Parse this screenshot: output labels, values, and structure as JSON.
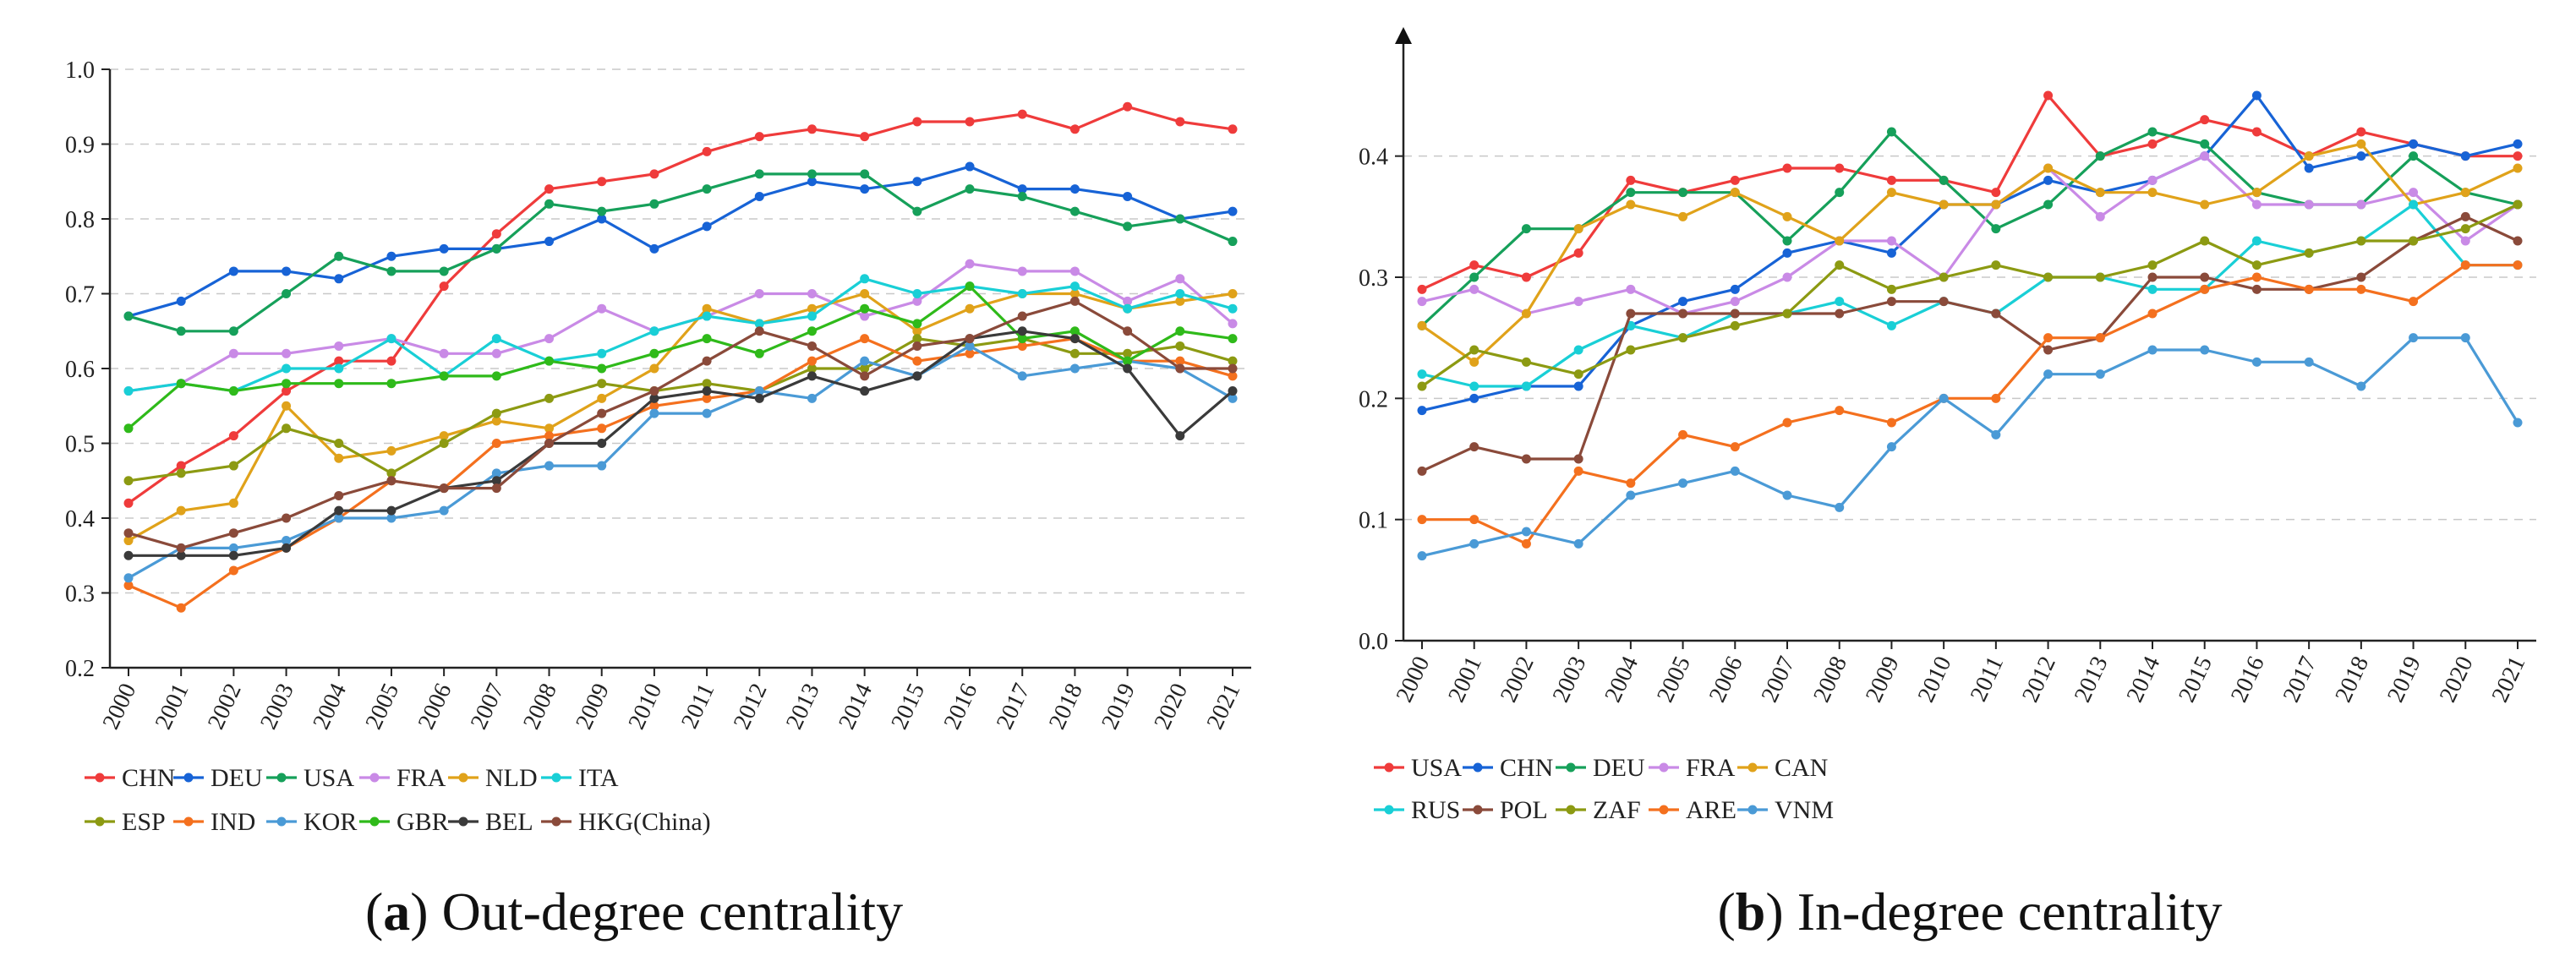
{
  "chart_data": [
    {
      "type": "line",
      "caption_label": "a",
      "caption_text": "Out-degree centrality",
      "x": [
        "2000",
        "2001",
        "2002",
        "2003",
        "2004",
        "2005",
        "2006",
        "2007",
        "2008",
        "2009",
        "2010",
        "2011",
        "2012",
        "2013",
        "2014",
        "2015",
        "2016",
        "2017",
        "2018",
        "2019",
        "2020",
        "2021"
      ],
      "ylim": [
        0.2,
        1.0
      ],
      "yticks": [
        "0.2",
        "0.3",
        "0.4",
        "0.5",
        "0.6",
        "0.7",
        "0.8",
        "0.9",
        "1.0"
      ],
      "grid": true,
      "legend_position": "bottom",
      "series": [
        {
          "name": "CHN",
          "color": "#ef3b3b",
          "values": [
            0.42,
            0.47,
            0.51,
            0.57,
            0.61,
            0.61,
            0.71,
            0.78,
            0.84,
            0.85,
            0.86,
            0.89,
            0.91,
            0.92,
            0.91,
            0.93,
            0.93,
            0.94,
            0.92,
            0.95,
            0.93,
            0.92
          ]
        },
        {
          "name": "DEU",
          "color": "#1763d6",
          "values": [
            0.67,
            0.69,
            0.73,
            0.73,
            0.72,
            0.75,
            0.76,
            0.76,
            0.77,
            0.8,
            0.76,
            0.79,
            0.83,
            0.85,
            0.84,
            0.85,
            0.87,
            0.84,
            0.84,
            0.83,
            0.8,
            0.81
          ]
        },
        {
          "name": "USA",
          "color": "#16a05a",
          "values": [
            0.67,
            0.65,
            0.65,
            0.7,
            0.75,
            0.73,
            0.73,
            0.76,
            0.82,
            0.81,
            0.82,
            0.84,
            0.86,
            0.86,
            0.86,
            0.81,
            0.84,
            0.83,
            0.81,
            0.79,
            0.8,
            0.77
          ]
        },
        {
          "name": "FRA",
          "color": "#c98ae6",
          "values": [
            0.57,
            0.58,
            0.62,
            0.62,
            0.63,
            0.64,
            0.62,
            0.62,
            0.64,
            0.68,
            0.65,
            0.67,
            0.7,
            0.7,
            0.67,
            0.69,
            0.74,
            0.73,
            0.73,
            0.69,
            0.72,
            0.66
          ]
        },
        {
          "name": "NLD",
          "color": "#e0a21a",
          "values": [
            0.37,
            0.41,
            0.42,
            0.55,
            0.48,
            0.49,
            0.51,
            0.53,
            0.52,
            0.56,
            0.6,
            0.68,
            0.66,
            0.68,
            0.7,
            0.65,
            0.68,
            0.7,
            0.7,
            0.68,
            0.69,
            0.7
          ]
        },
        {
          "name": "ITA",
          "color": "#19cfd6",
          "values": [
            0.57,
            0.58,
            0.57,
            0.6,
            0.6,
            0.64,
            0.59,
            0.64,
            0.61,
            0.62,
            0.65,
            0.67,
            0.66,
            0.67,
            0.72,
            0.7,
            0.71,
            0.7,
            0.71,
            0.68,
            0.7,
            0.68
          ]
        },
        {
          "name": "ESP",
          "color": "#8c9a12",
          "values": [
            0.45,
            0.46,
            0.47,
            0.52,
            0.5,
            0.46,
            0.5,
            0.54,
            0.56,
            0.58,
            0.57,
            0.58,
            0.57,
            0.6,
            0.6,
            0.64,
            0.63,
            0.64,
            0.62,
            0.62,
            0.63,
            0.61
          ]
        },
        {
          "name": "IND",
          "color": "#f4701e",
          "values": [
            0.31,
            0.28,
            0.33,
            0.36,
            0.4,
            0.45,
            0.44,
            0.5,
            0.51,
            0.52,
            0.55,
            0.56,
            0.57,
            0.61,
            0.64,
            0.61,
            0.62,
            0.63,
            0.64,
            0.61,
            0.61,
            0.59
          ]
        },
        {
          "name": "KOR",
          "color": "#4a9ad6",
          "values": [
            0.32,
            0.36,
            0.36,
            0.37,
            0.4,
            0.4,
            0.41,
            0.46,
            0.47,
            0.47,
            0.54,
            0.54,
            0.57,
            0.56,
            0.61,
            0.59,
            0.63,
            0.59,
            0.6,
            0.61,
            0.6,
            0.56
          ]
        },
        {
          "name": "GBR",
          "color": "#2fba1a",
          "values": [
            0.52,
            0.58,
            0.57,
            0.58,
            0.58,
            0.58,
            0.59,
            0.59,
            0.61,
            0.6,
            0.62,
            0.64,
            0.62,
            0.65,
            0.68,
            0.66,
            0.71,
            0.64,
            0.65,
            0.61,
            0.65,
            0.64
          ]
        },
        {
          "name": "BEL",
          "color": "#3a3a3a",
          "values": [
            0.35,
            0.35,
            0.35,
            0.36,
            0.41,
            0.41,
            0.44,
            0.45,
            0.5,
            0.5,
            0.56,
            0.57,
            0.56,
            0.59,
            0.57,
            0.59,
            0.64,
            0.65,
            0.64,
            0.6,
            0.51,
            0.57
          ]
        },
        {
          "name": "HKG(China)",
          "color": "#8a4a3a",
          "values": [
            0.38,
            0.36,
            0.38,
            0.4,
            0.43,
            0.45,
            0.44,
            0.44,
            0.5,
            0.54,
            0.57,
            0.61,
            0.65,
            0.63,
            0.59,
            0.63,
            0.64,
            0.67,
            0.69,
            0.65,
            0.6,
            0.6
          ]
        }
      ]
    },
    {
      "type": "line",
      "caption_label": "b",
      "caption_text": "In-degree centrality",
      "x": [
        "2000",
        "2001",
        "2002",
        "2003",
        "2004",
        "2005",
        "2006",
        "2007",
        "2008",
        "2009",
        "2010",
        "2011",
        "2012",
        "2013",
        "2014",
        "2015",
        "2016",
        "2017",
        "2018",
        "2019",
        "2020",
        "2021"
      ],
      "ylim": [
        0.0,
        0.48
      ],
      "yticks": [
        "0.0",
        "0.1",
        "0.2",
        "0.3",
        "0.4"
      ],
      "grid": true,
      "legend_position": "bottom",
      "series": [
        {
          "name": "USA",
          "color": "#ef3b3b",
          "values": [
            0.29,
            0.31,
            0.3,
            0.32,
            0.38,
            0.37,
            0.38,
            0.39,
            0.39,
            0.38,
            0.38,
            0.37,
            0.45,
            0.4,
            0.41,
            0.43,
            0.42,
            0.4,
            0.42,
            0.41,
            0.4,
            0.4
          ]
        },
        {
          "name": "CHN",
          "color": "#1763d6",
          "values": [
            0.19,
            0.2,
            0.21,
            0.21,
            0.26,
            0.28,
            0.29,
            0.32,
            0.33,
            0.32,
            0.36,
            0.36,
            0.38,
            0.37,
            0.38,
            0.4,
            0.45,
            0.39,
            0.4,
            0.41,
            0.4,
            0.41
          ]
        },
        {
          "name": "DEU",
          "color": "#16a05a",
          "values": [
            0.26,
            0.3,
            0.34,
            0.34,
            0.37,
            0.37,
            0.37,
            0.33,
            0.37,
            0.42,
            0.38,
            0.34,
            0.36,
            0.4,
            0.42,
            0.41,
            0.37,
            0.36,
            0.36,
            0.4,
            0.37,
            0.36
          ]
        },
        {
          "name": "FRA",
          "color": "#c98ae6",
          "values": [
            0.28,
            0.29,
            0.27,
            0.28,
            0.29,
            0.27,
            0.28,
            0.3,
            0.33,
            0.33,
            0.3,
            0.36,
            0.39,
            0.35,
            0.38,
            0.4,
            0.36,
            0.36,
            0.36,
            0.37,
            0.33,
            0.36
          ]
        },
        {
          "name": "CAN",
          "color": "#e0a21a",
          "values": [
            0.26,
            0.23,
            0.27,
            0.34,
            0.36,
            0.35,
            0.37,
            0.35,
            0.33,
            0.37,
            0.36,
            0.36,
            0.39,
            0.37,
            0.37,
            0.36,
            0.37,
            0.4,
            0.41,
            0.36,
            0.37,
            0.39
          ]
        },
        {
          "name": "RUS",
          "color": "#19cfd6",
          "values": [
            0.22,
            0.21,
            0.21,
            0.24,
            0.26,
            0.25,
            0.27,
            0.27,
            0.28,
            0.26,
            0.28,
            0.27,
            0.3,
            0.3,
            0.29,
            0.29,
            0.33,
            0.32,
            0.33,
            0.36,
            0.31,
            0.31
          ]
        },
        {
          "name": "POL",
          "color": "#8a4a3a",
          "values": [
            0.14,
            0.16,
            0.15,
            0.15,
            0.27,
            0.27,
            0.27,
            0.27,
            0.27,
            0.28,
            0.28,
            0.27,
            0.24,
            0.25,
            0.3,
            0.3,
            0.29,
            0.29,
            0.3,
            0.33,
            0.35,
            0.33
          ]
        },
        {
          "name": "ZAF",
          "color": "#8c9a12",
          "values": [
            0.21,
            0.24,
            0.23,
            0.22,
            0.24,
            0.25,
            0.26,
            0.27,
            0.31,
            0.29,
            0.3,
            0.31,
            0.3,
            0.3,
            0.31,
            0.33,
            0.31,
            0.32,
            0.33,
            0.33,
            0.34,
            0.36
          ]
        },
        {
          "name": "ARE",
          "color": "#f4701e",
          "values": [
            0.1,
            0.1,
            0.08,
            0.14,
            0.13,
            0.17,
            0.16,
            0.18,
            0.19,
            0.18,
            0.2,
            0.2,
            0.25,
            0.25,
            0.27,
            0.29,
            0.3,
            0.29,
            0.29,
            0.28,
            0.31,
            0.31
          ]
        },
        {
          "name": "VNM",
          "color": "#4a9ad6",
          "values": [
            0.07,
            0.08,
            0.09,
            0.08,
            0.12,
            0.13,
            0.14,
            0.12,
            0.11,
            0.16,
            0.2,
            0.17,
            0.22,
            0.22,
            0.24,
            0.24,
            0.23,
            0.23,
            0.21,
            0.25,
            0.25,
            0.18
          ]
        }
      ]
    }
  ]
}
